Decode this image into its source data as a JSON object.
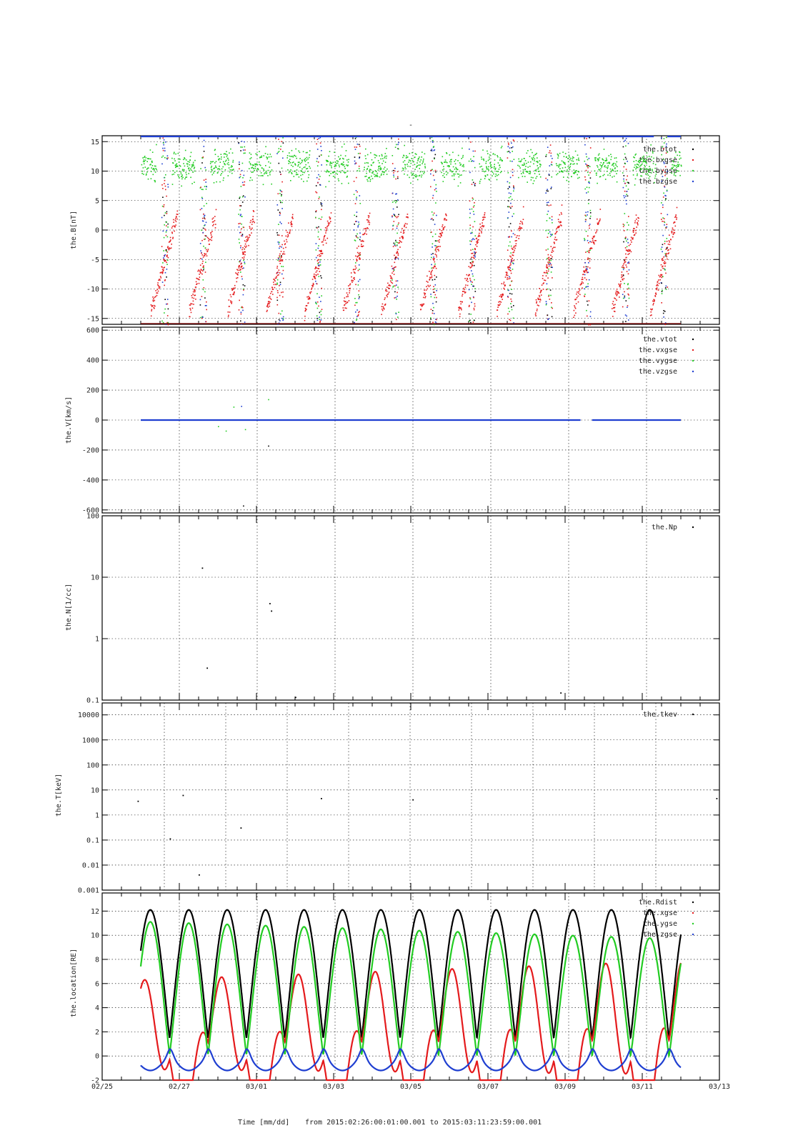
{
  "page_title": "-",
  "footer": {
    "xlabel": "Time [mm/dd]",
    "range_text": "from 2015:02:26:00:01:00.001  to  2015:03:11:23:59:00.001"
  },
  "x_axis": {
    "start": "2015-02-25",
    "end": "2015-03-13",
    "tick_labels": [
      "02/25",
      "02/27",
      "03/01",
      "03/03",
      "03/05",
      "03/07",
      "03/09",
      "03/11",
      "03/13"
    ]
  },
  "chart_data": [
    {
      "type": "scatter",
      "ylabel": "the.B[nT]",
      "ylim": [
        -16,
        16
      ],
      "scale": "linear",
      "yticks": [
        -15,
        -10,
        -5,
        0,
        5,
        10,
        15
      ],
      "grid": true,
      "legend_position": "top-right",
      "series": [
        {
          "name": "the.btot",
          "color": "#000000"
        },
        {
          "name": "the.bxgse",
          "color": "#e41a1c"
        },
        {
          "name": "the.bygse",
          "color": "#22cc22"
        },
        {
          "name": "the.bzgse",
          "color": "#1f3fd1"
        }
      ]
    },
    {
      "type": "scatter",
      "ylabel": "the.V[km/s]",
      "ylim": [
        -620,
        620
      ],
      "scale": "linear",
      "yticks": [
        -600,
        -400,
        -200,
        0,
        200,
        400,
        600
      ],
      "grid": true,
      "legend_position": "top-right",
      "series": [
        {
          "name": "the.vtot",
          "color": "#000000"
        },
        {
          "name": "the.vxgse",
          "color": "#e41a1c"
        },
        {
          "name": "the.vygse",
          "color": "#22cc22"
        },
        {
          "name": "the.vzgse",
          "color": "#1f3fd1"
        }
      ]
    },
    {
      "type": "scatter",
      "ylabel": "the.N[1/cc]",
      "ylim": [
        0.1,
        100
      ],
      "scale": "log",
      "yticks": [
        0.1,
        1,
        10,
        100
      ],
      "grid": true,
      "legend_position": "top-right",
      "series": [
        {
          "name": "the.Np",
          "color": "#000000",
          "x": [
            "2015-02-27T14:00",
            "2015-02-27T17:00",
            "2015-03-01T08:00",
            "2015-03-01T09:00",
            "2015-03-02T00:00",
            "2015-03-08T21:00"
          ],
          "y": [
            14,
            0.33,
            3.7,
            2.8,
            0.11,
            0.13
          ]
        }
      ]
    },
    {
      "type": "scatter",
      "ylabel": "the.T[keV]",
      "ylim": [
        0.001,
        30000
      ],
      "scale": "log",
      "yticks": [
        0.001,
        0.01,
        0.1,
        1,
        10,
        100,
        1000,
        10000
      ],
      "ytick_labels": [
        "0.001",
        "0.01",
        "0.1",
        "1",
        "10",
        "100",
        "1000",
        "10000"
      ],
      "grid": true,
      "legend_position": "top-right",
      "series": [
        {
          "name": "the.tkev",
          "color": "#000000",
          "x": [
            "2015-02-25T22:00",
            "2015-02-26T18:00",
            "2015-02-27T02:00",
            "2015-02-27T12:00",
            "2015-02-28T14:00",
            "2015-03-02T16:00",
            "2015-03-05T01:00",
            "2015-03-12T22:00"
          ],
          "y": [
            3.5,
            0.11,
            6,
            0.004,
            0.3,
            4.5,
            4,
            4.5
          ]
        }
      ]
    },
    {
      "type": "line",
      "ylabel": "the.location[RE]",
      "ylim": [
        -2,
        13.5
      ],
      "scale": "linear",
      "yticks": [
        -2,
        0,
        2,
        4,
        6,
        8,
        10,
        12
      ],
      "grid": true,
      "legend_position": "top-right",
      "series": [
        {
          "name": "the.Rdist",
          "color": "#000000"
        },
        {
          "name": "the.xgse",
          "color": "#e41a1c"
        },
        {
          "name": "the.ygse",
          "color": "#22cc22"
        },
        {
          "name": "the.zgse",
          "color": "#1f3fd1"
        }
      ],
      "orbit": {
        "period_days": 0.9958,
        "apogee_re": 12.1,
        "first_apogee": "2015-02-26T06:00"
      }
    }
  ]
}
